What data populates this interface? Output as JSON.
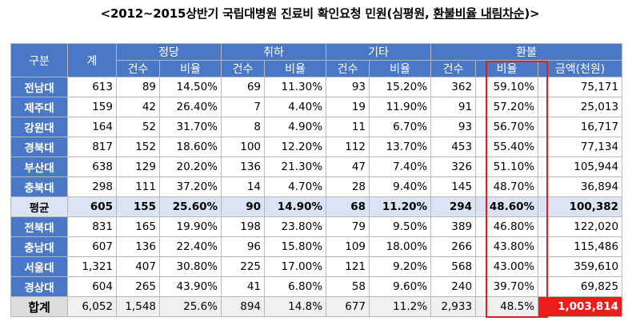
{
  "title": {
    "prefix": "<2012~2015상반기 국립대병원 진료비 확인요청 민원(심평원, ",
    "underlined": "환불비율 내림차순",
    "suffix": ")>"
  },
  "headers": {
    "group": "구분",
    "total": "계",
    "justified": "정당",
    "withdrawn": "취하",
    "other": "기타",
    "refund": "환불",
    "count": "건수",
    "ratio": "비율",
    "amount": "금액(천원)"
  },
  "rows": [
    {
      "name": "전남대",
      "total": "613",
      "j_cnt": "89",
      "j_pct": "14.50%",
      "w_cnt": "69",
      "w_pct": "11.30%",
      "o_cnt": "93",
      "o_pct": "15.20%",
      "r_cnt": "362",
      "r_pct": "59.10%",
      "amount": "75,171"
    },
    {
      "name": "제주대",
      "total": "159",
      "j_cnt": "42",
      "j_pct": "26.40%",
      "w_cnt": "7",
      "w_pct": "4.40%",
      "o_cnt": "19",
      "o_pct": "11.90%",
      "r_cnt": "91",
      "r_pct": "57.20%",
      "amount": "25,013"
    },
    {
      "name": "강원대",
      "total": "164",
      "j_cnt": "52",
      "j_pct": "31.70%",
      "w_cnt": "8",
      "w_pct": "4.90%",
      "o_cnt": "11",
      "o_pct": "6.70%",
      "r_cnt": "93",
      "r_pct": "56.70%",
      "amount": "16,717"
    },
    {
      "name": "경북대",
      "total": "817",
      "j_cnt": "152",
      "j_pct": "18.60%",
      "w_cnt": "100",
      "w_pct": "12.20%",
      "o_cnt": "112",
      "o_pct": "13.70%",
      "r_cnt": "453",
      "r_pct": "55.40%",
      "amount": "77,134"
    },
    {
      "name": "부산대",
      "total": "638",
      "j_cnt": "129",
      "j_pct": "20.20%",
      "w_cnt": "136",
      "w_pct": "21.30%",
      "o_cnt": "47",
      "o_pct": "7.40%",
      "r_cnt": "326",
      "r_pct": "51.10%",
      "amount": "105,944"
    },
    {
      "name": "충북대",
      "total": "298",
      "j_cnt": "111",
      "j_pct": "37.20%",
      "w_cnt": "14",
      "w_pct": "4.70%",
      "o_cnt": "28",
      "o_pct": "9.40%",
      "r_cnt": "145",
      "r_pct": "48.70%",
      "amount": "36,894"
    },
    {
      "name": "평균",
      "total": "605",
      "j_cnt": "155",
      "j_pct": "25.60%",
      "w_cnt": "90",
      "w_pct": "14.90%",
      "o_cnt": "68",
      "o_pct": "11.20%",
      "r_cnt": "294",
      "r_pct": "48.60%",
      "amount": "100,382"
    },
    {
      "name": "전북대",
      "total": "831",
      "j_cnt": "165",
      "j_pct": "19.90%",
      "w_cnt": "198",
      "w_pct": "23.80%",
      "o_cnt": "79",
      "o_pct": "9.50%",
      "r_cnt": "389",
      "r_pct": "46.80%",
      "amount": "122,020"
    },
    {
      "name": "충남대",
      "total": "607",
      "j_cnt": "136",
      "j_pct": "22.40%",
      "w_cnt": "96",
      "w_pct": "15.80%",
      "o_cnt": "109",
      "o_pct": "18.00%",
      "r_cnt": "266",
      "r_pct": "43.80%",
      "amount": "115,486"
    },
    {
      "name": "서울대",
      "total": "1,321",
      "j_cnt": "407",
      "j_pct": "30.80%",
      "w_cnt": "225",
      "w_pct": "17.00%",
      "o_cnt": "121",
      "o_pct": "9.20%",
      "r_cnt": "568",
      "r_pct": "43.00%",
      "amount": "359,610"
    },
    {
      "name": "경상대",
      "total": "604",
      "j_cnt": "265",
      "j_pct": "43.90%",
      "w_cnt": "41",
      "w_pct": "6.80%",
      "o_cnt": "58",
      "o_pct": "9.60%",
      "r_cnt": "240",
      "r_pct": "39.70%",
      "amount": "69,825"
    },
    {
      "name": "합계",
      "total": "6,052",
      "j_cnt": "1,548",
      "j_pct": "25.6%",
      "w_cnt": "894",
      "w_pct": "14.8%",
      "o_cnt": "677",
      "o_pct": "11.2%",
      "r_cnt": "2,933",
      "r_pct": "48.5%",
      "amount": "1,003,814"
    }
  ],
  "colors": {
    "header_blue": "#4a78c6",
    "average_row": "#dbe4f4",
    "highlight_red": "#ee1c1c"
  }
}
